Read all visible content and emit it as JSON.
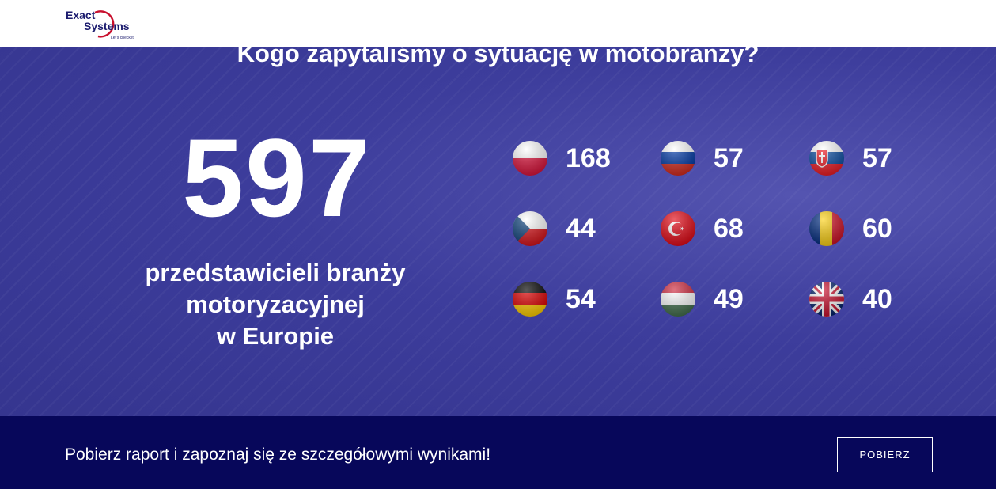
{
  "header": {
    "logo": {
      "word1": "Exact",
      "word2": "Systems",
      "tagline": "Let's check it!"
    }
  },
  "hero": {
    "title": "Kogo zapytaliśmy o sytuację w motobranży?",
    "total": 597,
    "description": [
      "przedstawicieli branży",
      "motoryzacyjnej",
      "w Europie"
    ],
    "stats": [
      168,
      57,
      57,
      44,
      68,
      60,
      54,
      49,
      40
    ]
  },
  "footer": {
    "text": "Pobierz raport i zapoznaj się ze szczegółowymi wynikami!",
    "button": "POBIERZ"
  }
}
